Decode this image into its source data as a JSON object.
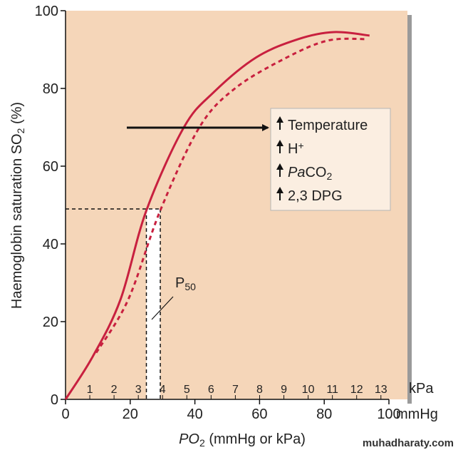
{
  "chart_data": {
    "type": "line",
    "xlim": [
      0,
      100
    ],
    "xticks": [
      0,
      20,
      40,
      60,
      80,
      100
    ],
    "x_unit": "mmHg",
    "ylim": [
      0,
      100
    ],
    "yticks": [
      0,
      20,
      40,
      60,
      80,
      100
    ],
    "x2lim": [
      0,
      13.33
    ],
    "x2ticks": [
      1,
      2,
      3,
      4,
      5,
      6,
      7,
      8,
      9,
      10,
      11,
      12,
      13
    ],
    "x2_unit": "kPa",
    "x_label": [
      {
        "text": "PO",
        "italic": true
      },
      {
        "text": "2",
        "sub": true
      },
      {
        "text": " (mmHg or kPa)"
      }
    ],
    "y_label": [
      {
        "text": "Haemoglobin saturation SO"
      },
      {
        "text": "2",
        "sub": true
      },
      {
        "text": " (%)"
      }
    ],
    "series": [
      {
        "color": "#c8203f",
        "dash": false,
        "x": [
          0,
          8.4,
          17,
          25,
          36.6,
          45.8,
          59,
          72,
          83,
          94
        ],
        "values": [
          0,
          11,
          25.7,
          48.6,
          70,
          79,
          88,
          92.7,
          94.5,
          93.6
        ]
      },
      {
        "color": "#c8203f",
        "dash": true,
        "x": [
          9.5,
          19.4,
          29.3,
          41.4,
          52.4,
          67.8,
          81,
          93
        ],
        "values": [
          12,
          25.7,
          48.6,
          70,
          80,
          87.7,
          92.3,
          92.7
        ]
      }
    ],
    "p50": {
      "y": 49,
      "x": [
        25,
        29.3
      ],
      "label": [
        {
          "text": "P"
        },
        {
          "text": "50",
          "sub": true
        }
      ]
    },
    "legend_items": [
      [
        {
          "text": "Temperature"
        }
      ],
      [
        {
          "text": "H"
        },
        {
          "text": "+",
          "sup": true
        }
      ],
      [
        {
          "text": "Pa",
          "italic": true
        },
        {
          "text": "CO"
        },
        {
          "text": "2",
          "sub": true
        }
      ],
      [
        {
          "text": "2,3 DPG"
        }
      ]
    ]
  },
  "watermark": "muhadharaty.com"
}
